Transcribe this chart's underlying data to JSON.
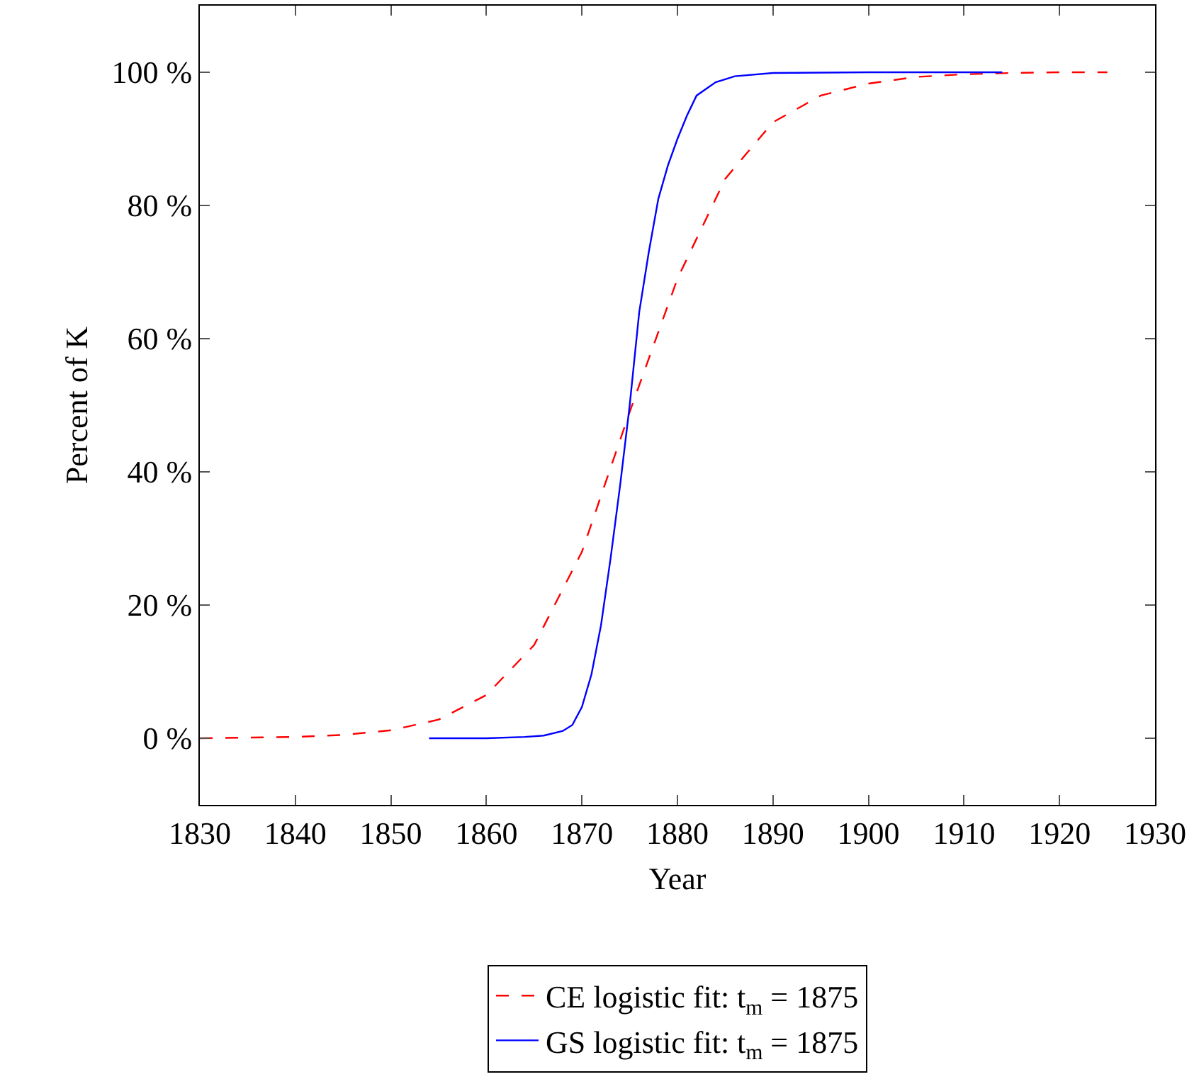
{
  "chart_data": {
    "type": "line",
    "xlabel": "Year",
    "ylabel": "Percent of K",
    "xlim": [
      1830,
      1930
    ],
    "xticks": [
      1830,
      1840,
      1850,
      1860,
      1870,
      1880,
      1890,
      1900,
      1910,
      1920,
      1930
    ],
    "ylim": [
      -10,
      110
    ],
    "yticks": [
      {
        "value": 0,
        "label": "0 %"
      },
      {
        "value": 20,
        "label": "20 %"
      },
      {
        "value": 40,
        "label": "40 %"
      },
      {
        "value": 60,
        "label": "60 %"
      },
      {
        "value": 80,
        "label": "80 %"
      },
      {
        "value": 100,
        "label": "100 %"
      }
    ],
    "legend": "bottom",
    "marker": "none",
    "series": [
      {
        "name": "CE logistic fit: t$_{m}$ = 1875",
        "color": "#ff0000",
        "line_style": "dashed",
        "x": [
          1830,
          1835,
          1840,
          1845,
          1850,
          1855,
          1860,
          1865,
          1870,
          1875,
          1880,
          1885,
          1890,
          1895,
          1900,
          1905,
          1910,
          1915,
          1920,
          1925
        ],
        "values": [
          0,
          0.1,
          0.2,
          0.5,
          1.2,
          2.8,
          6.5,
          14,
          28,
          49,
          69,
          84,
          92.5,
          96.5,
          98.3,
          99.3,
          99.7,
          99.9,
          100,
          100
        ]
      },
      {
        "name": "GS logistic fit: t$_{m}$ = 1875",
        "color": "#0000ff",
        "line_style": "solid",
        "x": [
          1854,
          1860,
          1864,
          1866,
          1868,
          1869,
          1870,
          1871,
          1872,
          1873,
          1874,
          1875,
          1876,
          1877,
          1878,
          1879,
          1880,
          1881,
          1882,
          1884,
          1886,
          1890,
          1900,
          1914
        ],
        "values": [
          0,
          0,
          0.2,
          0.4,
          1.1,
          2,
          4.7,
          9.6,
          17,
          27,
          38,
          50,
          64,
          73,
          81,
          86,
          90,
          93.5,
          96.5,
          98.5,
          99.4,
          99.9,
          100,
          100
        ]
      }
    ]
  }
}
